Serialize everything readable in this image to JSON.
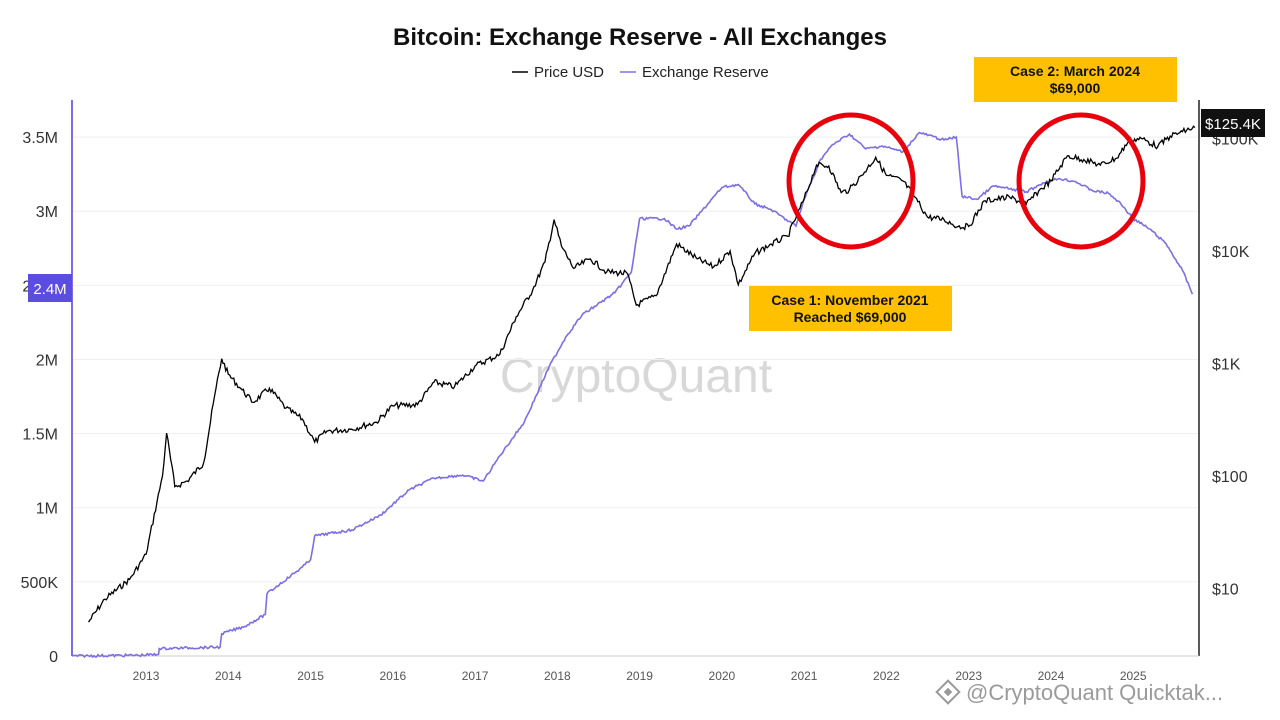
{
  "chart_data": {
    "type": "line",
    "title": "Bitcoin: Exchange Reserve - All Exchanges",
    "legend": {
      "placement": "top-center"
    },
    "series": [
      {
        "name": "Price USD",
        "axis": "right",
        "color": "#000000",
        "points": [
          [
            2012.3,
            5
          ],
          [
            2012.5,
            8
          ],
          [
            2012.8,
            12
          ],
          [
            2013.0,
            20
          ],
          [
            2013.2,
            100
          ],
          [
            2013.25,
            240
          ],
          [
            2013.35,
            80
          ],
          [
            2013.5,
            90
          ],
          [
            2013.7,
            130
          ],
          [
            2013.85,
            600
          ],
          [
            2013.92,
            1100
          ],
          [
            2014.0,
            800
          ],
          [
            2014.15,
            600
          ],
          [
            2014.3,
            450
          ],
          [
            2014.5,
            600
          ],
          [
            2014.7,
            400
          ],
          [
            2014.9,
            320
          ],
          [
            2015.05,
            200
          ],
          [
            2015.2,
            250
          ],
          [
            2015.5,
            260
          ],
          [
            2015.8,
            300
          ],
          [
            2016.0,
            420
          ],
          [
            2016.3,
            430
          ],
          [
            2016.5,
            680
          ],
          [
            2016.75,
            620
          ],
          [
            2017.0,
            950
          ],
          [
            2017.3,
            1200
          ],
          [
            2017.5,
            2600
          ],
          [
            2017.7,
            4500
          ],
          [
            2017.85,
            8000
          ],
          [
            2017.96,
            19000
          ],
          [
            2018.05,
            11000
          ],
          [
            2018.2,
            7000
          ],
          [
            2018.4,
            8500
          ],
          [
            2018.6,
            6500
          ],
          [
            2018.85,
            6300
          ],
          [
            2018.96,
            3300
          ],
          [
            2019.2,
            4000
          ],
          [
            2019.45,
            11500
          ],
          [
            2019.7,
            8500
          ],
          [
            2019.9,
            7200
          ],
          [
            2020.1,
            10000
          ],
          [
            2020.2,
            5000
          ],
          [
            2020.4,
            9500
          ],
          [
            2020.6,
            11500
          ],
          [
            2020.8,
            13500
          ],
          [
            2021.0,
            29000
          ],
          [
            2021.15,
            58000
          ],
          [
            2021.3,
            57000
          ],
          [
            2021.45,
            33000
          ],
          [
            2021.55,
            35000
          ],
          [
            2021.7,
            47000
          ],
          [
            2021.87,
            68000
          ],
          [
            2022.0,
            47000
          ],
          [
            2022.2,
            42000
          ],
          [
            2022.35,
            30000
          ],
          [
            2022.5,
            20000
          ],
          [
            2022.7,
            19000
          ],
          [
            2022.87,
            16500
          ],
          [
            2023.0,
            16500
          ],
          [
            2023.2,
            28000
          ],
          [
            2023.5,
            30000
          ],
          [
            2023.7,
            26000
          ],
          [
            2023.85,
            34000
          ],
          [
            2024.0,
            42000
          ],
          [
            2024.2,
            70000
          ],
          [
            2024.4,
            65000
          ],
          [
            2024.6,
            58000
          ],
          [
            2024.8,
            67000
          ],
          [
            2024.95,
            96000
          ],
          [
            2025.1,
            100000
          ],
          [
            2025.3,
            85000
          ],
          [
            2025.45,
            105000
          ],
          [
            2025.6,
            115000
          ],
          [
            2025.75,
            125400
          ]
        ]
      },
      {
        "name": "Exchange Reserve",
        "axis": "left",
        "color": "#7b6fe6",
        "points": [
          [
            2012.1,
            0
          ],
          [
            2012.9,
            5000
          ],
          [
            2013.15,
            10000
          ],
          [
            2013.16,
            50000
          ],
          [
            2013.9,
            60000
          ],
          [
            2013.92,
            150000
          ],
          [
            2014.2,
            200000
          ],
          [
            2014.45,
            280000
          ],
          [
            2014.47,
            420000
          ],
          [
            2014.9,
            600000
          ],
          [
            2015.0,
            650000
          ],
          [
            2015.05,
            810000
          ],
          [
            2015.5,
            850000
          ],
          [
            2015.85,
            950000
          ],
          [
            2016.2,
            1120000
          ],
          [
            2016.5,
            1200000
          ],
          [
            2016.85,
            1220000
          ],
          [
            2017.1,
            1180000
          ],
          [
            2017.3,
            1350000
          ],
          [
            2017.6,
            1580000
          ],
          [
            2017.9,
            1950000
          ],
          [
            2018.1,
            2150000
          ],
          [
            2018.3,
            2300000
          ],
          [
            2018.7,
            2450000
          ],
          [
            2018.9,
            2590000
          ],
          [
            2019.0,
            2950000
          ],
          [
            2019.3,
            2950000
          ],
          [
            2019.45,
            2880000
          ],
          [
            2019.6,
            2900000
          ],
          [
            2020.0,
            3160000
          ],
          [
            2020.2,
            3180000
          ],
          [
            2020.4,
            3050000
          ],
          [
            2020.6,
            3010000
          ],
          [
            2020.9,
            2900000
          ],
          [
            2021.0,
            3080000
          ],
          [
            2021.2,
            3350000
          ],
          [
            2021.35,
            3450000
          ],
          [
            2021.55,
            3520000
          ],
          [
            2021.75,
            3420000
          ],
          [
            2021.95,
            3440000
          ],
          [
            2022.2,
            3400000
          ],
          [
            2022.4,
            3530000
          ],
          [
            2022.7,
            3480000
          ],
          [
            2022.85,
            3500000
          ],
          [
            2022.92,
            3100000
          ],
          [
            2023.1,
            3080000
          ],
          [
            2023.3,
            3170000
          ],
          [
            2023.5,
            3150000
          ],
          [
            2023.7,
            3130000
          ],
          [
            2023.9,
            3190000
          ],
          [
            2024.1,
            3220000
          ],
          [
            2024.3,
            3200000
          ],
          [
            2024.5,
            3140000
          ],
          [
            2024.7,
            3120000
          ],
          [
            2024.85,
            3050000
          ],
          [
            2025.0,
            2950000
          ],
          [
            2025.2,
            2880000
          ],
          [
            2025.4,
            2780000
          ],
          [
            2025.6,
            2600000
          ],
          [
            2025.72,
            2440000
          ]
        ]
      }
    ],
    "x_axis": {
      "ticks": [
        "2013",
        "2014",
        "2015",
        "2016",
        "2017",
        "2018",
        "2019",
        "2020",
        "2021",
        "2022",
        "2023",
        "2024",
        "2025"
      ],
      "range": [
        2012.1,
        2025.8
      ]
    },
    "y_left": {
      "ticks": [
        "0",
        "500K",
        "1M",
        "1.5M",
        "2M",
        "2.5M",
        "3M",
        "3.5M"
      ],
      "range": [
        0,
        3750000
      ]
    },
    "y_right": {
      "scale": "log",
      "ticks": [
        "$10",
        "$100",
        "$1K",
        "$10K",
        "$100K"
      ],
      "range": [
        2.5,
        220000
      ]
    },
    "current_values": {
      "price": "$125.4K",
      "reserve": "2.4M"
    },
    "annotations": [
      {
        "id": "case2",
        "lines": [
          "Case 2: March 2024",
          "$69,000"
        ]
      },
      {
        "id": "case1",
        "lines": [
          "Case 1: November 2021",
          "Reached $69,000"
        ]
      }
    ],
    "highlights": [
      {
        "label": "Case 1 peak",
        "x_range": [
          2021.0,
          2022.4
        ]
      },
      {
        "label": "Case 2 peak",
        "x_range": [
          2023.8,
          2025.0
        ]
      }
    ],
    "grid": "horizontal",
    "watermark": "CryptoQuant",
    "credit": "@CryptoQuant Quicktak..."
  }
}
